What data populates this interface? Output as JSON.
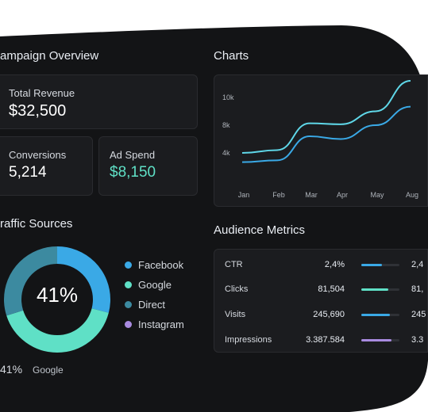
{
  "campaign_overview": {
    "title": "ampaign Overview",
    "total_revenue": {
      "label": "Total Revenue",
      "value": "$32,500"
    },
    "conversions": {
      "label": "Conversions",
      "value": "5,214"
    },
    "ad_spend": {
      "label": "Ad Spend",
      "value": "$8,150"
    }
  },
  "charts": {
    "title": "Charts"
  },
  "chart_data": {
    "type": "line",
    "x": [
      "Jan",
      "Feb",
      "Mar",
      "Apr",
      "May",
      "Aug"
    ],
    "y_ticks": [
      "10k",
      "8k",
      "4k"
    ],
    "series": [
      {
        "color": "#5fd7e8",
        "values": [
          4,
          4.3,
          7.2,
          7.1,
          8.5,
          11.8
        ]
      },
      {
        "color": "#3aa9e6",
        "values": [
          3,
          3.2,
          5.8,
          5.5,
          7,
          9
        ]
      }
    ]
  },
  "traffic_sources": {
    "title": "raffic Sources",
    "center_pct": "41%",
    "foot_pct": "41%",
    "foot_name": "Google",
    "legend": [
      {
        "label": "Facebook",
        "color": "#3aa9e6"
      },
      {
        "label": "Google",
        "color": "#5fe0c6"
      },
      {
        "label": "Direct",
        "color": "#3c8aa0"
      },
      {
        "label": "Instagram",
        "color": "#a98be0"
      }
    ],
    "segments": [
      {
        "name": "Facebook",
        "pct": 29,
        "color": "#3aa9e6"
      },
      {
        "name": "Google",
        "pct": 41,
        "color": "#5fe0c6"
      },
      {
        "name": "Direct",
        "pct": 30,
        "color": "#3c8aa0"
      }
    ]
  },
  "audience_metrics": {
    "title": "Audience Metrics",
    "rows": [
      {
        "label": "CTR",
        "value": "2,4%",
        "bar_pct": 55,
        "bar_color": "#3aa9e6",
        "value2": "2,4"
      },
      {
        "label": "Clicks",
        "value": "81,504",
        "bar_pct": 70,
        "bar_color": "#5fe0c6",
        "value2": "81,"
      },
      {
        "label": "Visits",
        "value": "245,690",
        "bar_pct": 75,
        "bar_color": "#3aa9e6",
        "value2": "245"
      },
      {
        "label": "Impressions",
        "value": "3.387.584",
        "bar_pct": 80,
        "bar_color": "#a98be0",
        "value2": "3.3"
      }
    ]
  }
}
